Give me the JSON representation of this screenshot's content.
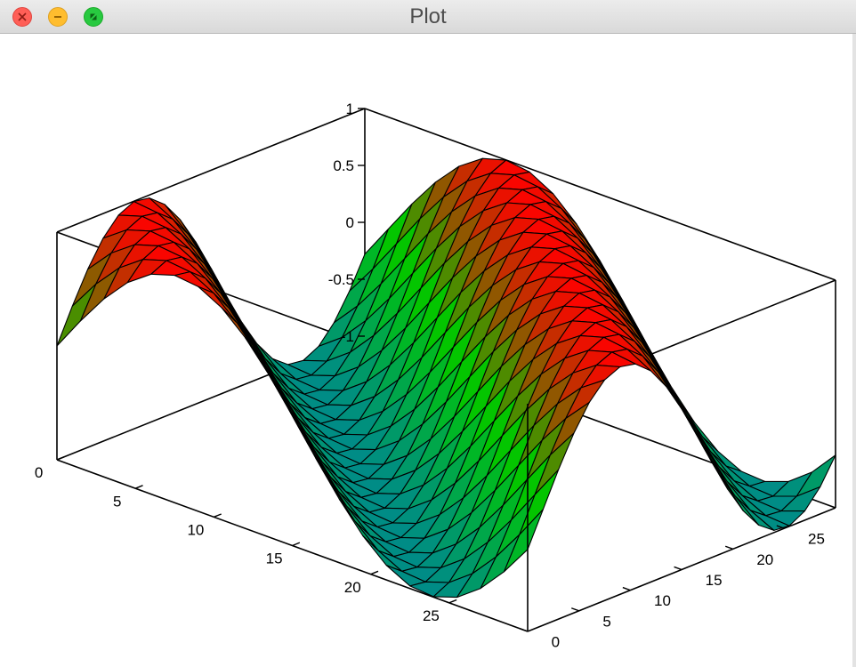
{
  "window": {
    "title": "Plot"
  },
  "chart_data": {
    "type": "surface",
    "xlim": [
      0,
      30
    ],
    "ylim": [
      0,
      30
    ],
    "zlim": [
      -1,
      1
    ],
    "grid_step": 1.5,
    "surface": "z = sin((x + y) / 5)",
    "colormap": [
      "#008a8a",
      "#00c800",
      "#ff0000"
    ],
    "mesh_color": "#000000",
    "x_ticks": [
      0,
      5,
      10,
      15,
      20,
      25
    ],
    "y_ticks": [
      0,
      5,
      10,
      15,
      20,
      25
    ],
    "z_ticks": [
      -1,
      -0.5,
      0,
      0.5,
      1
    ],
    "x_tick_labels": [
      "0",
      "5",
      "10",
      "15",
      "20",
      "25"
    ],
    "y_tick_labels": [
      "0",
      "5",
      "10",
      "15",
      "20",
      "25"
    ],
    "z_tick_labels": [
      "-1",
      "-0.5",
      "0",
      "0.5",
      "1"
    ],
    "grid": false,
    "box": true
  }
}
